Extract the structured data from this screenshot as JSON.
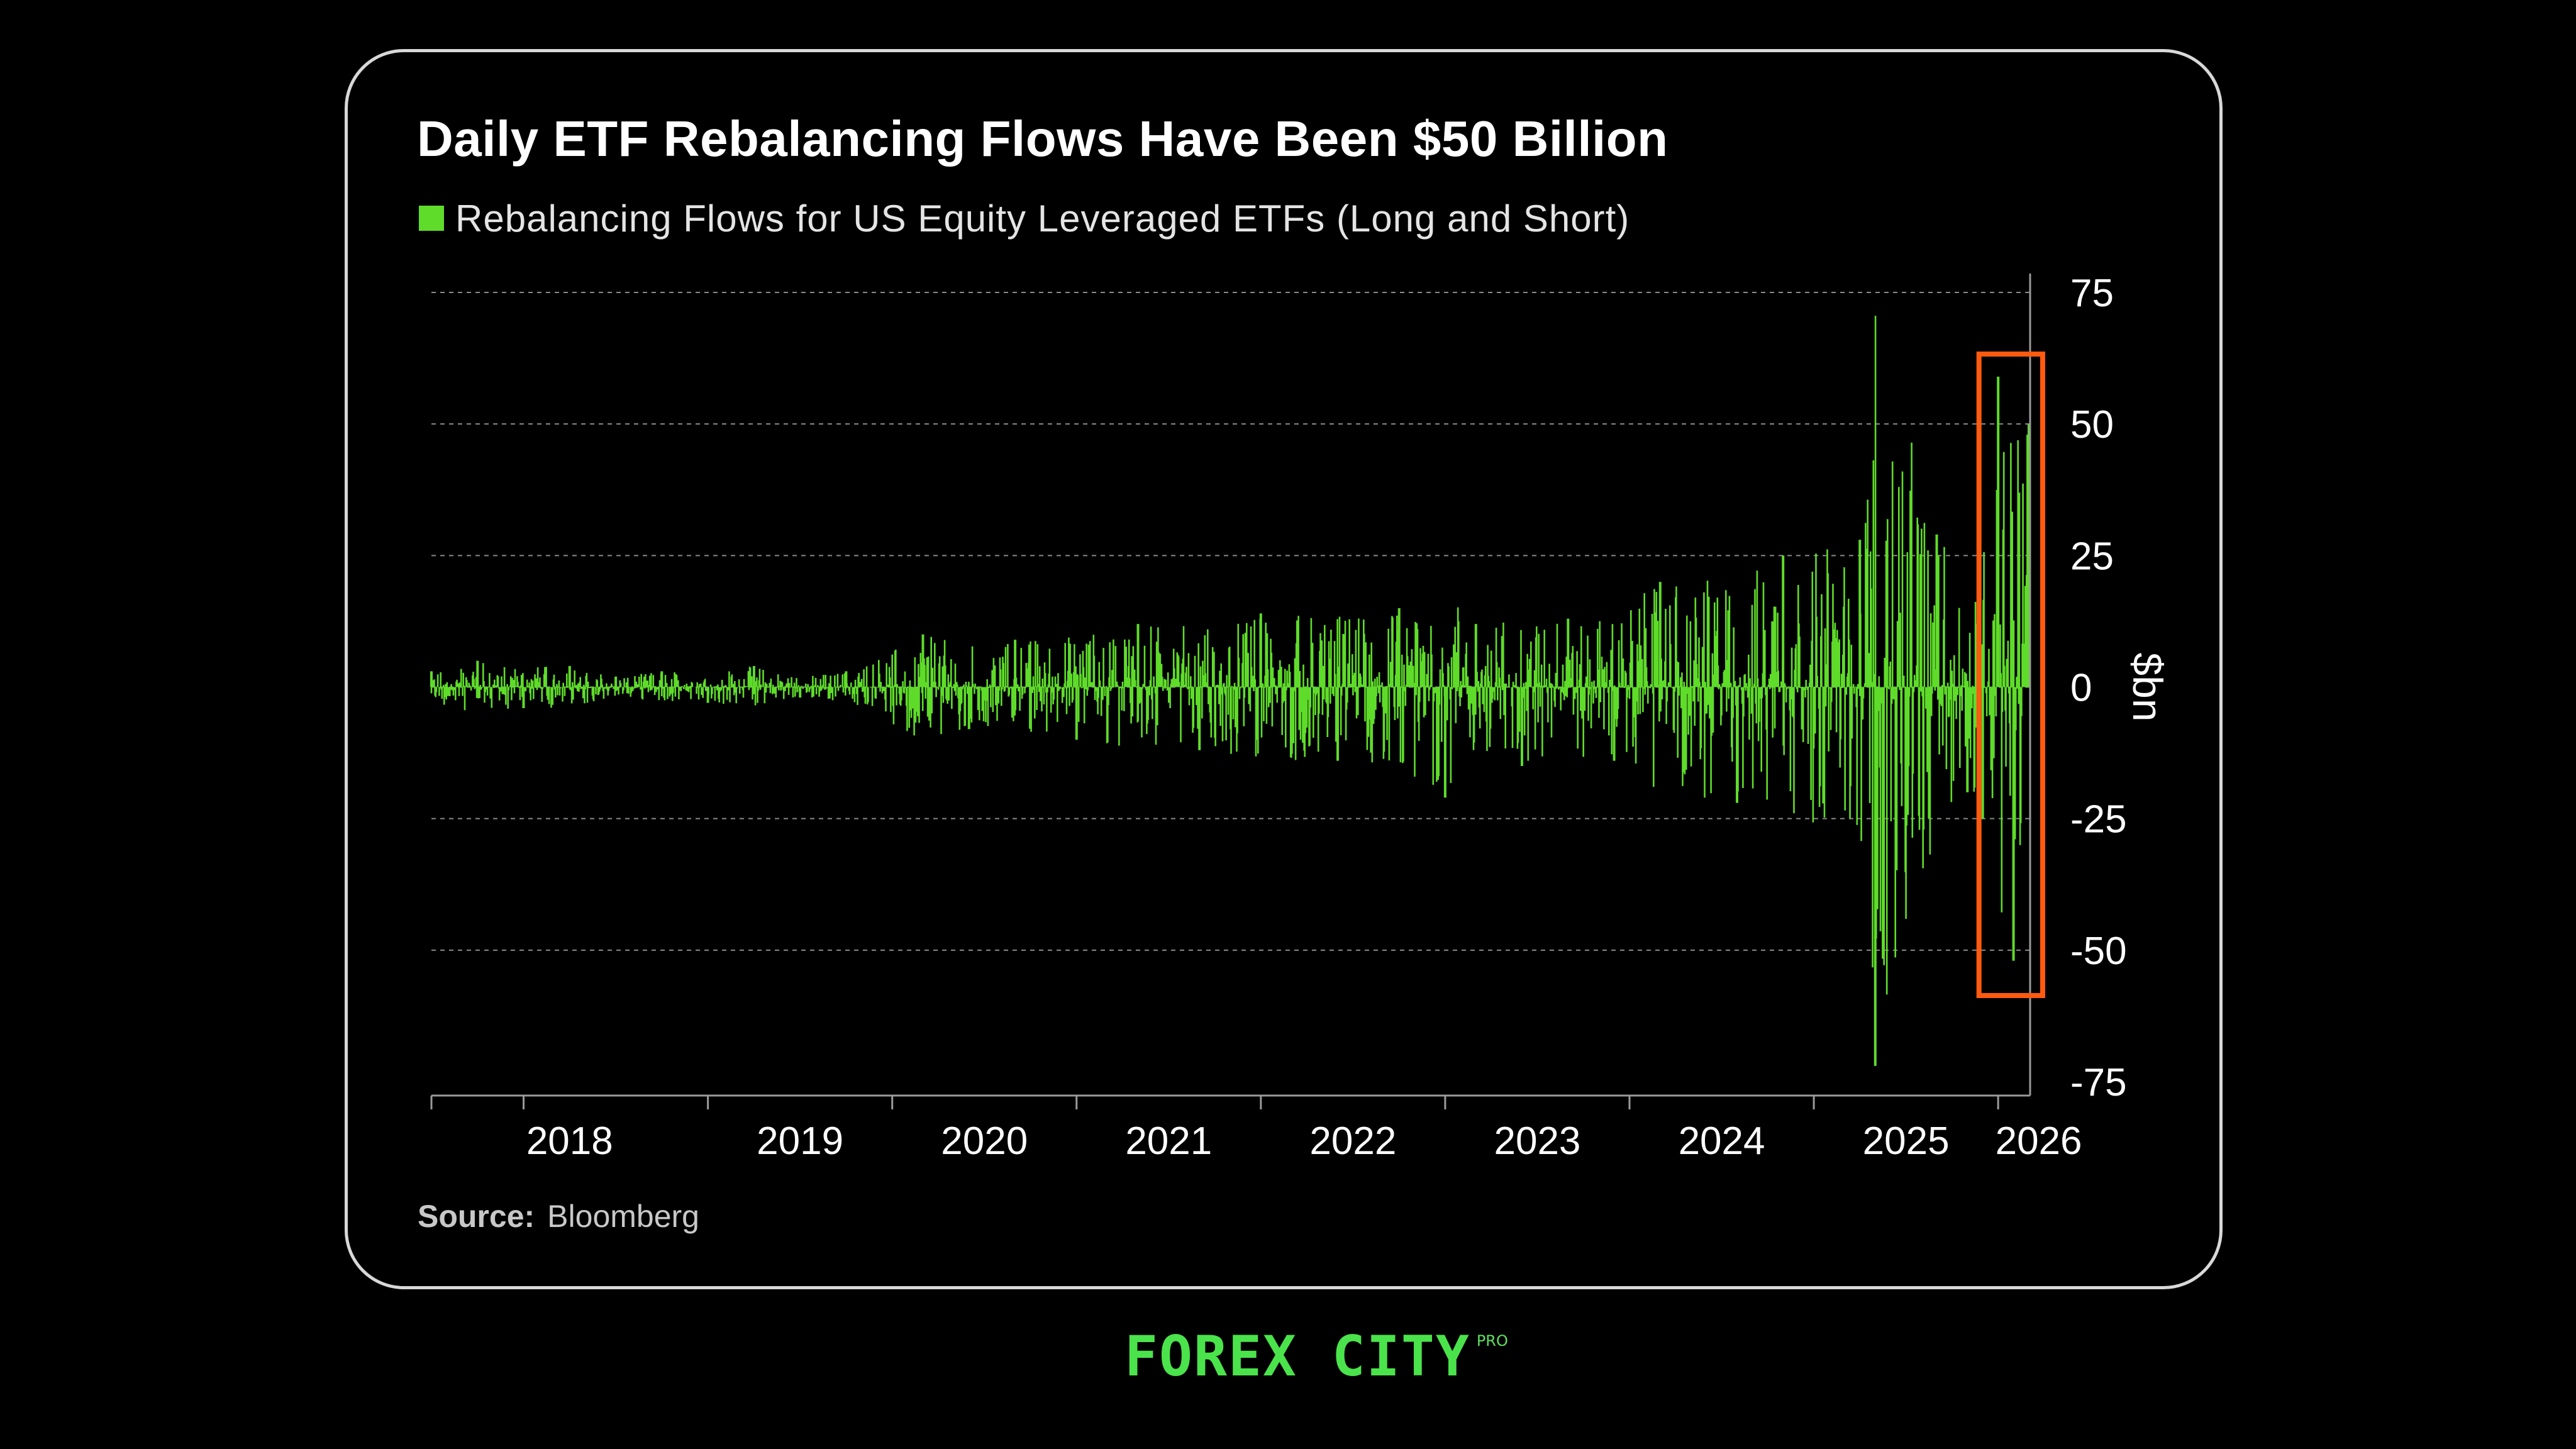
{
  "colors": {
    "series": "#5fdc2a",
    "highlight": "#ff5a10",
    "grid": "#8a8a8a",
    "axis": "#9a9a9a",
    "brand": "#4be34b"
  },
  "chart_data": {
    "type": "bar",
    "title": "Daily ETF Rebalancing Flows Have Been $50 Billion",
    "legend": {
      "position": "top-left",
      "entries": [
        "Rebalancing Flows for US Equity Leveraged ETFs (Long and Short)"
      ]
    },
    "series": [
      {
        "name": "Rebalancing Flows for US Equity Leveraged ETFs (Long and Short)",
        "x": [
          "2017-07",
          "2017-10",
          "2018-01",
          "2018-04",
          "2018-07",
          "2018-10",
          "2019-01",
          "2019-04",
          "2019-07",
          "2019-10",
          "2020-03",
          "2020-06",
          "2020-09",
          "2021-01",
          "2021-05",
          "2021-09",
          "2022-01",
          "2022-06",
          "2022-10",
          "2023-01",
          "2023-03",
          "2023-06",
          "2023-09",
          "2023-12",
          "2024-03",
          "2024-08",
          "2024-11",
          "2025-04",
          "2025-05",
          "2025-09",
          "2025-11",
          "2025-12",
          "2026-01",
          "2026-02",
          "2026-03"
        ],
        "y": [
          3,
          5,
          -4,
          4,
          2,
          3,
          -3,
          4,
          -2,
          3,
          10,
          -8,
          9,
          -10,
          12,
          -12,
          14,
          -14,
          15,
          -21,
          12,
          -15,
          13,
          -14,
          20,
          -22,
          25,
          28,
          -72,
          29,
          -20,
          -25,
          59,
          -52,
          50
        ],
        "note": "approximate daily envelope (peak magnitude) of the series"
      }
    ],
    "x_ticks": [
      "2018",
      "2019",
      "2020",
      "2021",
      "2022",
      "2023",
      "2024",
      "2025",
      "2026"
    ],
    "y_ticks": [
      "75",
      "50",
      "25",
      "0",
      "-25",
      "-50",
      "-75"
    ],
    "ylabel": "$bn",
    "ylim": [
      -75,
      75
    ],
    "xlim": [
      "2017-07",
      "2026-03"
    ],
    "y_axis_side": "right",
    "grid": "horizontal dashed",
    "annotation": {
      "type": "box",
      "range": [
        "2025-12",
        "2026-03"
      ]
    }
  },
  "source": {
    "label": "Source:",
    "value": "Bloomberg"
  },
  "brand": {
    "name": "FOREX CITY",
    "badge": "PRO"
  }
}
